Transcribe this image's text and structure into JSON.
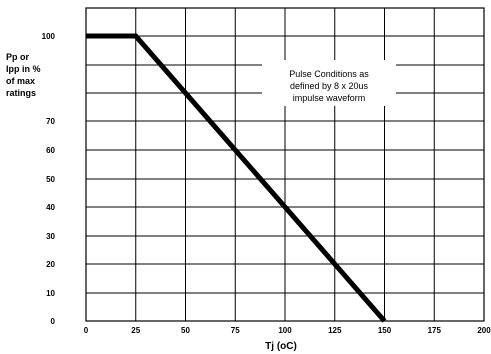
{
  "chart_data": {
    "type": "line",
    "title": "",
    "xlabel": "Tj (oC)",
    "ylabel_lines": [
      "Pp or",
      "Ipp in %",
      "of max",
      "ratings"
    ],
    "annotation_lines": [
      "Pulse Conditions as",
      "defined by 8 x 20us",
      "impulse waveform"
    ],
    "xlim": [
      0,
      200
    ],
    "ylim": [
      0,
      100
    ],
    "x_ticks": [
      0,
      25,
      50,
      75,
      100,
      125,
      150,
      175,
      200
    ],
    "y_ticks": [
      0,
      10,
      20,
      30,
      40,
      50,
      60,
      70,
      100
    ],
    "y_tick_labels": [
      "0",
      "10",
      "20",
      "30",
      "40",
      "50",
      "60",
      "70",
      "100"
    ],
    "grid": true,
    "series": [
      {
        "x": [
          0,
          25,
          150
        ],
        "y": [
          100,
          100,
          0
        ],
        "color": "#000000"
      }
    ]
  }
}
